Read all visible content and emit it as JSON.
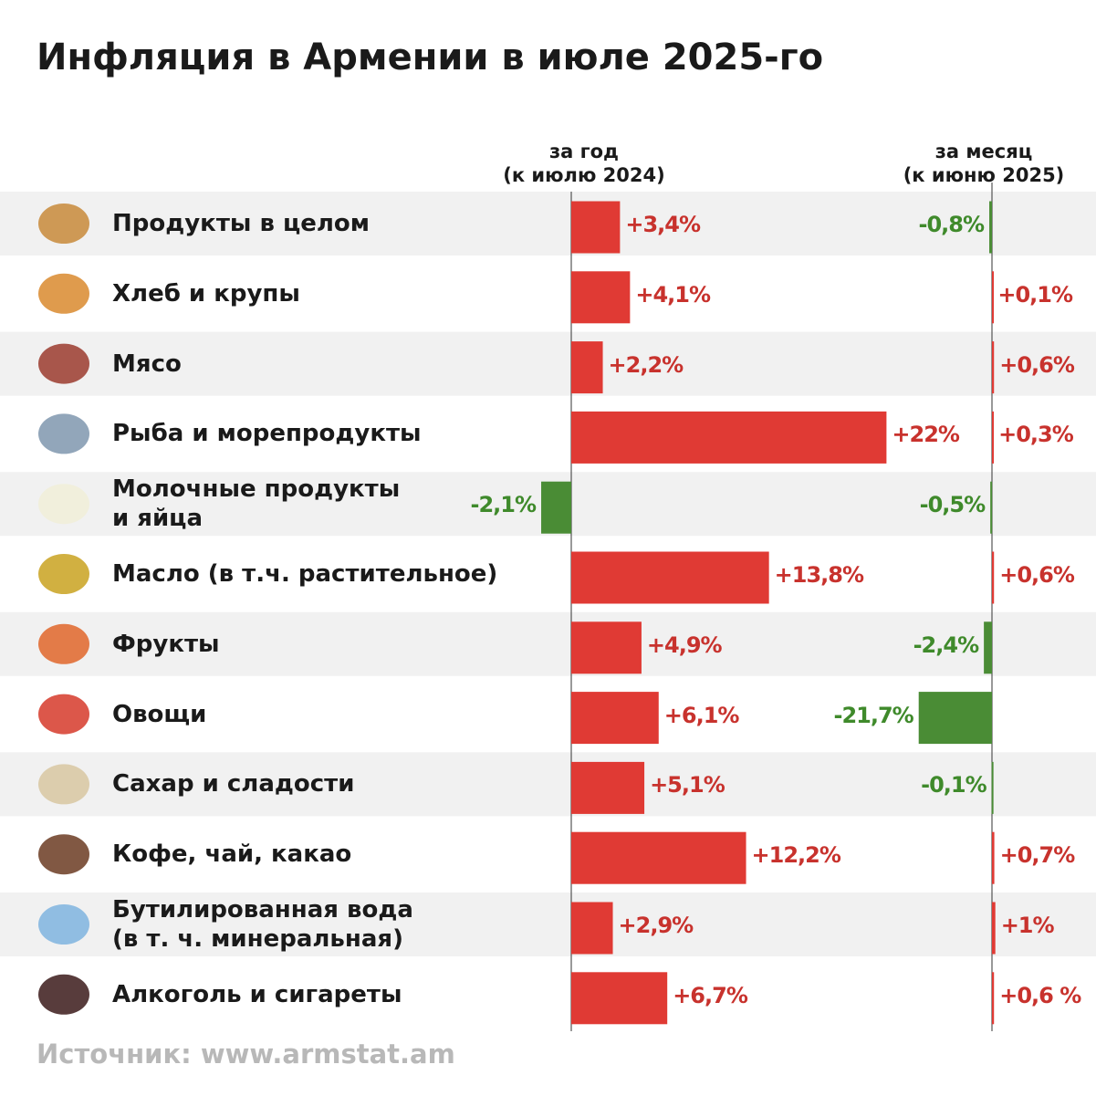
{
  "chart_data": {
    "type": "diverging-bar",
    "title": "Инфляция в Армении в июле 2025-го",
    "categories": [
      "Продукты в целом",
      "Хлеб и крупы",
      "Мясо",
      "Рыба и морепродукты",
      "Молочные продукты\nи яйца",
      "Масло (в т.ч. растительное)",
      "Фрукты",
      "Овощи",
      "Сахар и сладости",
      "Кофе, чай, какао",
      "Бутилированная вода\n(в т. ч. минеральная)",
      "Алкоголь и сигареты"
    ],
    "positive_color": "#e03a34",
    "negative_color": "#4a8c35",
    "series": [
      {
        "name": "за год\n(к июлю 2024)",
        "values": [
          3.4,
          4.1,
          2.2,
          22,
          -2.1,
          13.8,
          4.9,
          6.1,
          5.1,
          12.2,
          2.9,
          6.7
        ],
        "value_labels": [
          "+3,4%",
          "+4,1%",
          "+2,2%",
          "+22%",
          "-2,1%",
          "+13,8%",
          "+4,9%",
          "+6,1%",
          "+5,1%",
          "+12,2%",
          "+2,9%",
          "+6,7%"
        ]
      },
      {
        "name": "за месяц\n(к июню 2025)",
        "values": [
          -0.8,
          0.1,
          0.6,
          0.3,
          -0.5,
          0.6,
          -2.4,
          -21.7,
          -0.1,
          0.7,
          1,
          0.6
        ],
        "value_labels": [
          "-0,8%",
          "+0,1%",
          "+0,6%",
          "+0,3%",
          "-0,5%",
          "+0,6%",
          "-2,4%",
          "-21,7%",
          "-0,1%",
          "+0,7%",
          "+1%",
          "+0,6 %"
        ]
      }
    ],
    "source": "Источник: www.armstat.am"
  }
}
